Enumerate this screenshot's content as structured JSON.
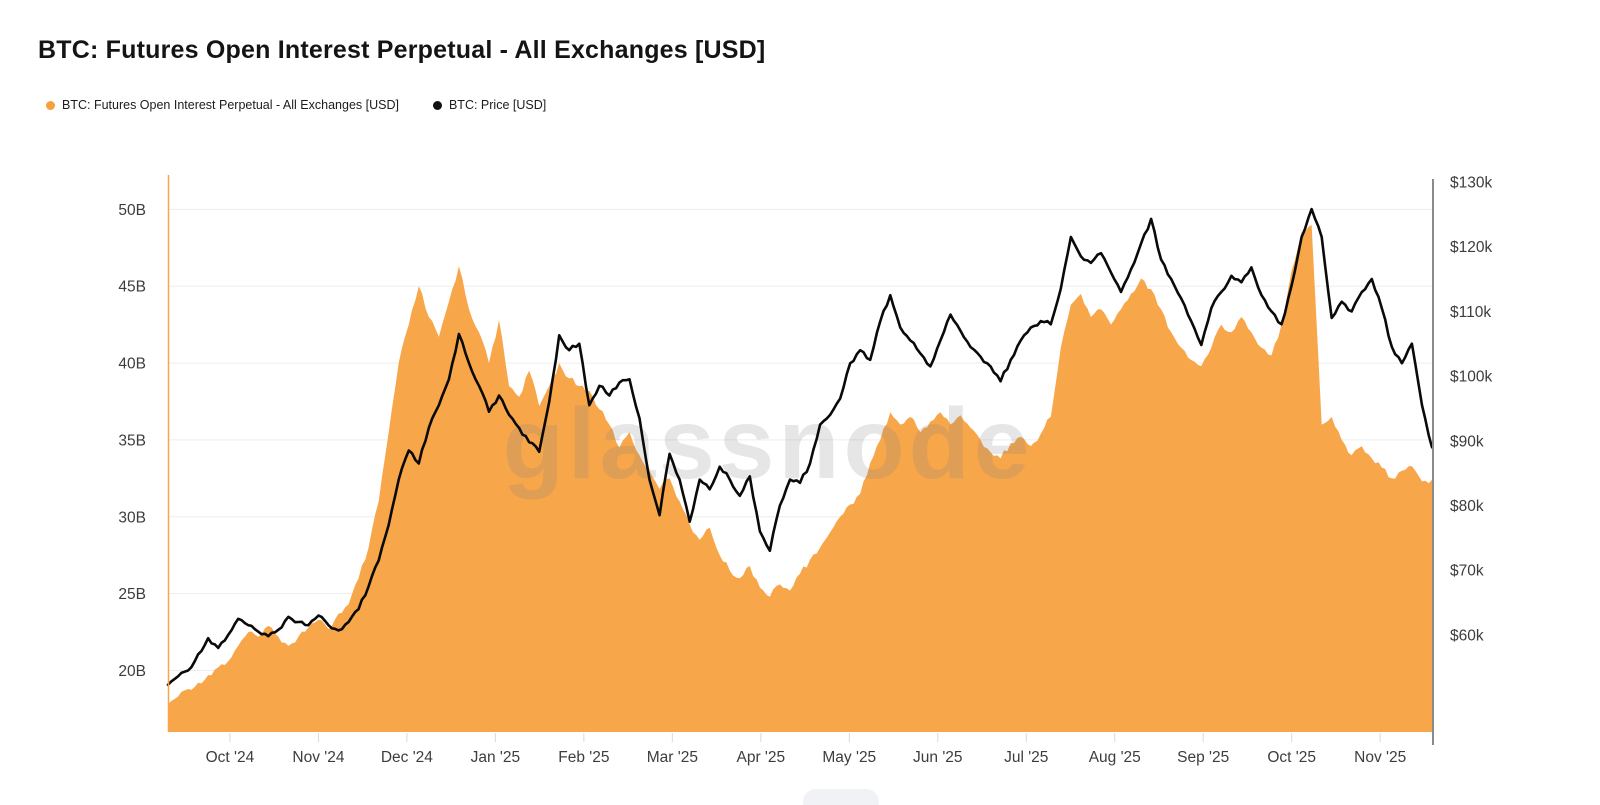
{
  "title": "BTC: Futures Open Interest Perpetual - All Exchanges [USD]",
  "watermark": "glassnode",
  "legend": [
    {
      "label": "BTC: Futures Open Interest Perpetual - All Exchanges [USD]",
      "color": "#F7A03C"
    },
    {
      "label": "BTC: Price [USD]",
      "color": "#111111"
    }
  ],
  "chart_data": {
    "type": "area+line",
    "title": "BTC: Futures Open Interest Perpetual - All Exchanges [USD]",
    "grid": true,
    "grid_color": "#ededed",
    "axis_text_color": "#3d3d3d",
    "right_axis_line_color": "#8a8a8a",
    "left_axis_line_color": "#F7A64A",
    "x_axis": {
      "labels": [
        "Oct '24",
        "Nov '24",
        "Dec '24",
        "Jan '25",
        "Feb '25",
        "Mar '25",
        "Apr '25",
        "May '25",
        "Jun '25",
        "Jul '25",
        "Aug '25",
        "Sep '25",
        "Oct '25",
        "Nov '25"
      ],
      "range_note": "data spans ~Sep 2024 to ~late Nov 2025"
    },
    "y_left": {
      "unit": "B (USD billions, open interest)",
      "ticks": [
        20,
        25,
        30,
        35,
        40,
        45,
        50
      ],
      "tick_labels": [
        "20B",
        "25B",
        "30B",
        "35B",
        "40B",
        "45B",
        "50B"
      ],
      "range": [
        16.0,
        52.56
      ]
    },
    "y_right": {
      "unit": "k (USD thousands, price)",
      "ticks": [
        60,
        70,
        80,
        90,
        100,
        110,
        120,
        130
      ],
      "tick_labels": [
        "$60k",
        "$70k",
        "$80k",
        "$90k",
        "$100k",
        "$110k",
        "$120k",
        "$130k"
      ],
      "range": [
        45.0,
        131.85
      ]
    },
    "series": [
      {
        "name": "BTC: Futures Open Interest Perpetual - All Exchanges [USD]",
        "type": "area",
        "axis": "left",
        "color": "#F7A64A",
        "values": [
          17.8,
          18.3,
          18.8,
          19.2,
          19.7,
          20.2,
          20.6,
          21.6,
          22.5,
          22.2,
          22.9,
          22.2,
          21.6,
          22.2,
          22.8,
          23.3,
          22.7,
          23.7,
          24.3,
          26.0,
          28.0,
          31.0,
          35.5,
          40.0,
          42.5,
          45.0,
          43.0,
          41.7,
          44.0,
          46.3,
          43.5,
          42.0,
          40.0,
          42.8,
          38.5,
          37.8,
          39.5,
          37.2,
          38.5,
          40.0,
          39.0,
          38.5,
          38.2,
          37.0,
          36.0,
          34.5,
          35.5,
          34.0,
          33.0,
          31.8,
          32.5,
          31.0,
          29.5,
          28.5,
          29.3,
          27.5,
          26.5,
          26.0,
          26.8,
          25.4,
          24.8,
          25.6,
          25.2,
          26.3,
          27.2,
          28.0,
          29.0,
          30.0,
          30.8,
          31.5,
          33.5,
          35.0,
          36.8,
          36.0,
          36.5,
          35.5,
          36.2,
          36.8,
          36.0,
          36.6,
          35.8,
          35.0,
          34.2,
          33.8,
          34.8,
          35.2,
          34.6,
          35.4,
          36.5,
          41.0,
          43.8,
          44.5,
          43.0,
          43.5,
          42.5,
          43.5,
          44.5,
          45.5,
          44.8,
          43.5,
          42.0,
          41.0,
          40.2,
          39.8,
          41.0,
          42.5,
          42.0,
          43.0,
          42.0,
          41.0,
          40.5,
          42.5,
          46.0,
          48.5,
          49.0,
          36.0,
          36.5,
          35.0,
          34.0,
          34.6,
          33.8,
          33.2,
          32.5,
          33.0,
          33.3,
          32.3,
          32.4
        ]
      },
      {
        "name": "BTC: Price [USD]",
        "type": "line",
        "axis": "right",
        "color": "#0a0a0a",
        "values": [
          52.3,
          53.6,
          54.5,
          57.0,
          59.5,
          58.0,
          60.0,
          62.5,
          61.5,
          60.5,
          59.8,
          60.8,
          62.8,
          62.0,
          61.5,
          63.0,
          61.5,
          60.7,
          62.0,
          64.0,
          67.5,
          71.5,
          77.0,
          84.0,
          88.5,
          86.5,
          92.0,
          95.5,
          99.5,
          106.5,
          102.0,
          98.5,
          94.5,
          97.0,
          94.0,
          92.0,
          89.8,
          88.3,
          96.0,
          106.3,
          104.0,
          105.0,
          95.5,
          98.5,
          97.0,
          99.0,
          99.5,
          93.5,
          84.0,
          78.5,
          88.0,
          84.0,
          77.5,
          84.0,
          82.5,
          86.0,
          84.0,
          81.5,
          84.5,
          76.0,
          73.0,
          80.0,
          84.0,
          83.5,
          86.5,
          92.5,
          94.0,
          96.5,
          102.0,
          104.0,
          102.5,
          108.5,
          112.5,
          107.5,
          105.5,
          103.5,
          101.5,
          105.5,
          109.5,
          107.0,
          104.5,
          103.0,
          101.5,
          99.2,
          102.5,
          105.5,
          107.5,
          108.5,
          108.0,
          113.5,
          121.5,
          118.5,
          117.5,
          119.0,
          116.0,
          113.0,
          116.5,
          120.5,
          124.3,
          118.0,
          115.0,
          112.0,
          108.5,
          104.8,
          110.5,
          113.0,
          115.5,
          114.5,
          116.8,
          112.5,
          110.0,
          108.0,
          114.0,
          121.5,
          125.8,
          121.5,
          109.0,
          111.5,
          110.0,
          113.0,
          115.0,
          110.5,
          104.5,
          102.0,
          105.0,
          95.5,
          89.0
        ]
      }
    ]
  }
}
